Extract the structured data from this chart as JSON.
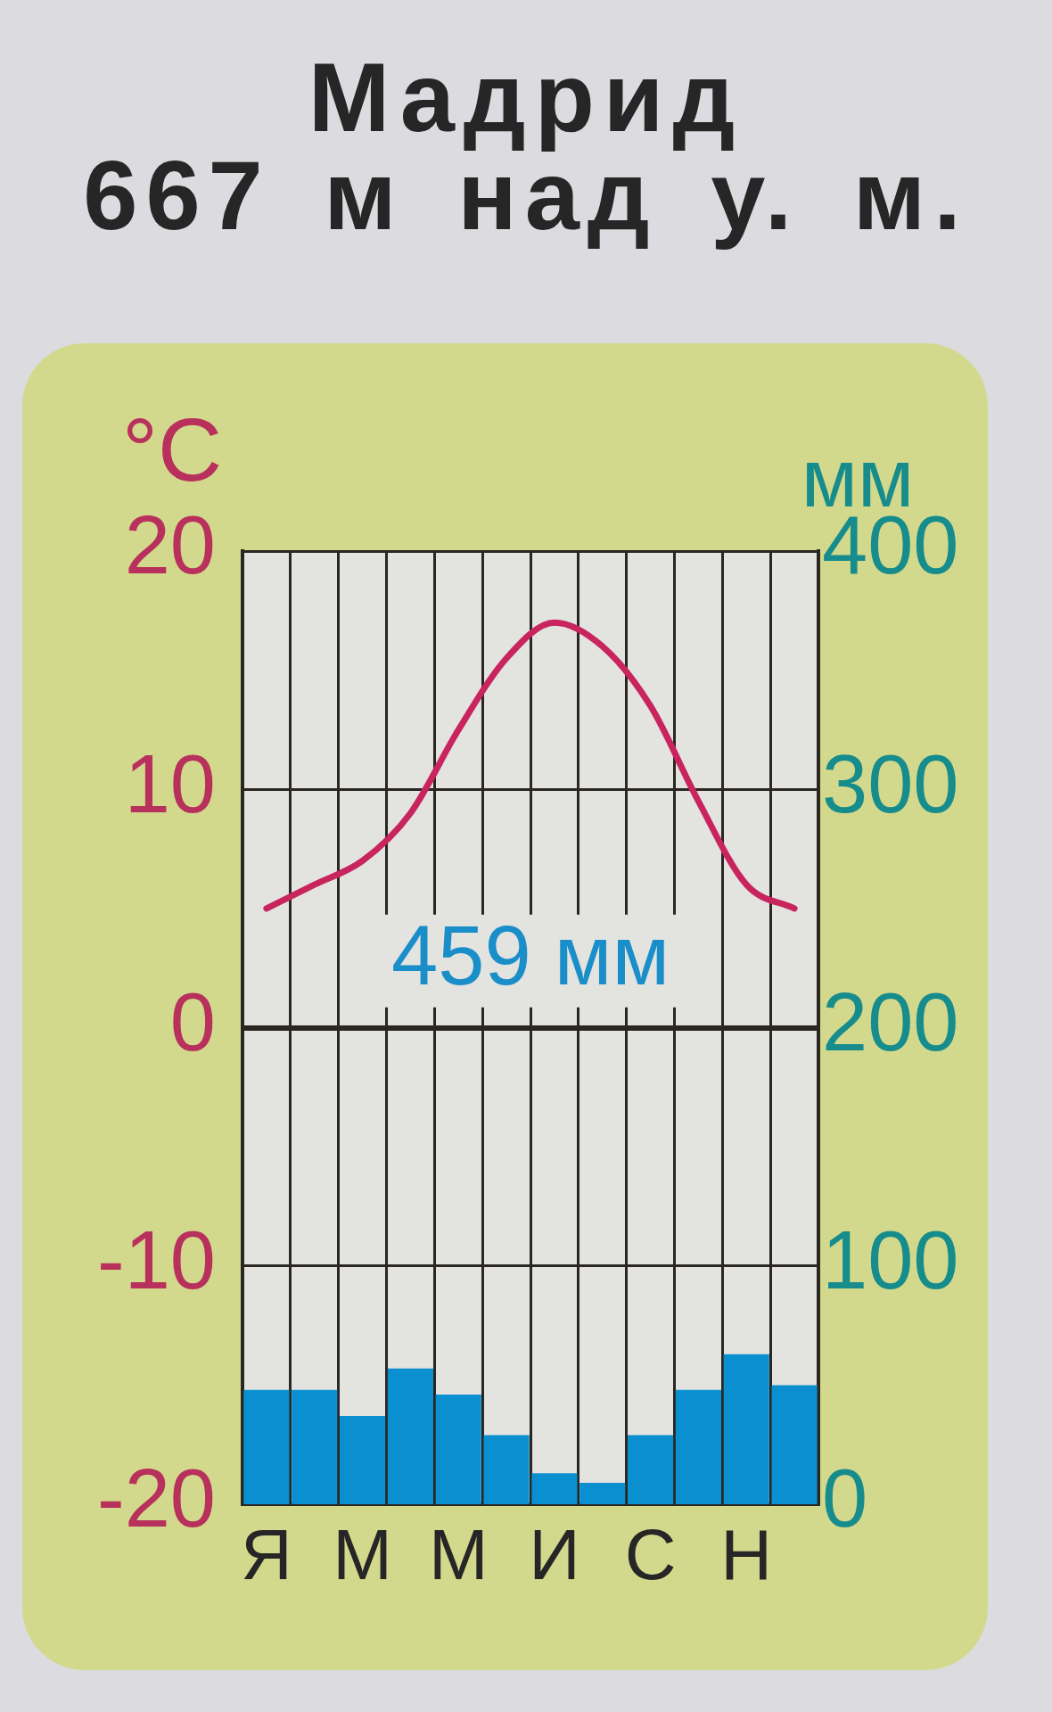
{
  "chart_data": {
    "type": "bar",
    "title": "Мадрид",
    "subtitle": "667 м над у. м.",
    "ylabel": "°C",
    "y2label": "мм",
    "categories": [
      "Я",
      null,
      "М",
      null,
      "М",
      null,
      "И",
      null,
      "С",
      null,
      "Н",
      null
    ],
    "series": [
      {
        "axis": "y2",
        "color": "#0a90d0",
        "values": [
          48,
          48,
          37,
          57,
          46,
          29,
          13,
          9,
          29,
          48,
          63,
          50
        ]
      },
      {
        "type": "line",
        "color": "#c8245e",
        "values": [
          5,
          6,
          7,
          9,
          12.5,
          15.5,
          17,
          16,
          13.5,
          9.5,
          6,
          5
        ]
      }
    ],
    "ylim": [
      -20,
      20
    ],
    "yticks": [
      -20,
      -10,
      0,
      10,
      20
    ],
    "y2lim": [
      0,
      400
    ],
    "y2ticks": [
      0,
      100,
      200,
      300,
      400
    ],
    "grid": true,
    "marker": "none",
    "annotations": [
      "459 мм"
    ]
  }
}
